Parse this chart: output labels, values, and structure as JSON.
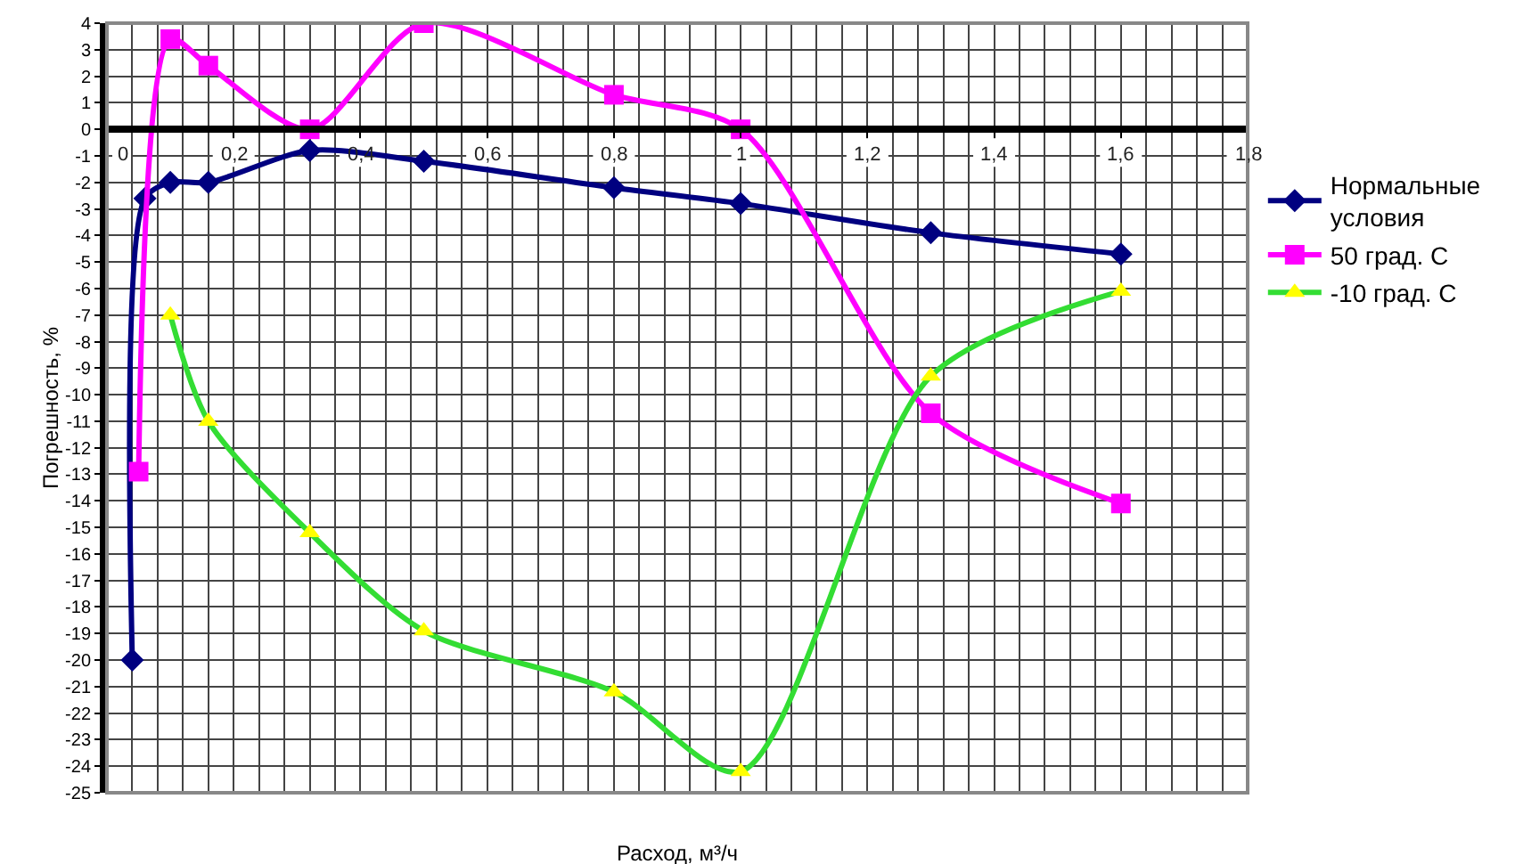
{
  "chart_data": {
    "type": "line",
    "xlabel": "Расход, м³/ч",
    "ylabel": "Погрешность, %",
    "xlim": [
      0,
      1.8
    ],
    "xticks": [
      0,
      {
        "value": 0.2,
        "label": "0,2"
      },
      {
        "value": 0.4,
        "label": "0,4"
      },
      {
        "value": 0.6,
        "label": "0,6"
      },
      {
        "value": 0.8,
        "label": "0,8"
      },
      1,
      {
        "value": 1.2,
        "label": "1,2"
      },
      {
        "value": 1.4,
        "label": "1,4"
      },
      {
        "value": 1.6,
        "label": "1,6"
      },
      {
        "value": 1.8,
        "label": "1,8"
      }
    ],
    "ylim": [
      -25,
      4
    ],
    "yticks": [
      -25,
      -24,
      -23,
      -22,
      -21,
      -20,
      -19,
      -18,
      -17,
      -16,
      -15,
      -14,
      -13,
      -12,
      -11,
      -10,
      -9,
      -8,
      -7,
      -6,
      -5,
      -4,
      -3,
      -2,
      -1,
      0,
      1,
      2,
      3,
      4
    ],
    "grid": true,
    "legend": "right",
    "line_style": "solid",
    "series": [
      {
        "name": "Нормальные условия",
        "color": "#000080",
        "marker": "diamond",
        "x": [
          0.04,
          0.06,
          0.1,
          0.16,
          0.32,
          0.5,
          0.8,
          1.0,
          1.3,
          1.6
        ],
        "values": [
          -20,
          -2.6,
          -2.0,
          -2.0,
          -0.8,
          -1.2,
          -2.2,
          -2.8,
          -3.9,
          -4.7
        ]
      },
      {
        "name": "50 град. С",
        "color": "#ff00ff",
        "marker": "square",
        "x": [
          0.05,
          0.1,
          0.16,
          0.32,
          0.5,
          0.8,
          1.0,
          1.3,
          1.6
        ],
        "values": [
          -12.9,
          3.4,
          2.4,
          0,
          4,
          1.3,
          0,
          -10.7,
          -14.1
        ]
      },
      {
        "name": "-10 град. С",
        "color": "#33dd33",
        "colors": [
          "#ffff00",
          "#ffff00",
          "#ffff00",
          "#ffff00",
          "#ffff00",
          "#ffff00",
          "#ffff00",
          "#ffff00"
        ],
        "marker": "triangle",
        "x": [
          0.1,
          0.16,
          0.32,
          0.5,
          0.8,
          1.0,
          1.3,
          1.6
        ],
        "values": [
          -7.0,
          -11.0,
          -15.2,
          -18.9,
          -21.2,
          -24.2,
          -9.3,
          -6.1
        ]
      }
    ]
  }
}
